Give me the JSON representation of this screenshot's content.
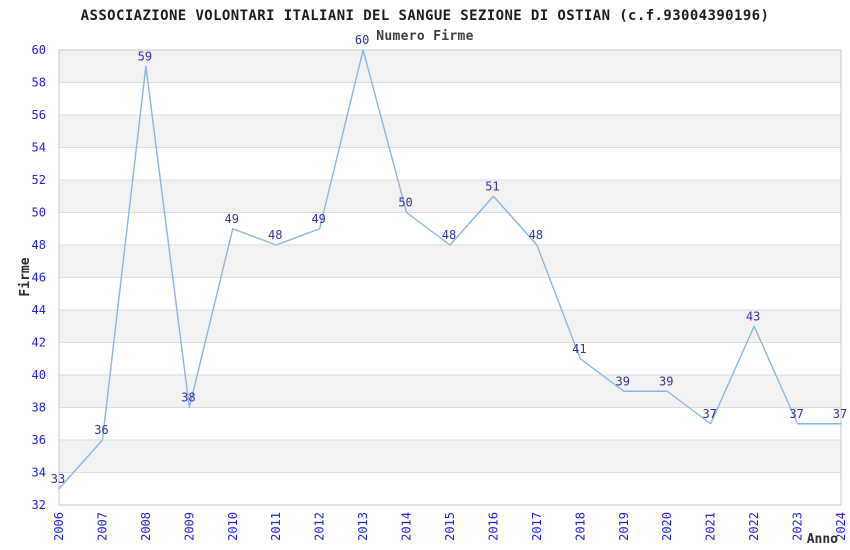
{
  "chart_data": {
    "type": "line",
    "title": "ASSOCIAZIONE VOLONTARI ITALIANI DEL SANGUE SEZIONE DI OSTIAN (c.f.93004390196)",
    "subtitle": "Numero Firme",
    "xlabel": "Anno",
    "ylabel": "Firme",
    "categories": [
      "2006",
      "2007",
      "2008",
      "2009",
      "2010",
      "2011",
      "2012",
      "2013",
      "2014",
      "2015",
      "2016",
      "2017",
      "2018",
      "2019",
      "2020",
      "2021",
      "2022",
      "2023",
      "2024"
    ],
    "series": [
      {
        "name": "Numero Firme",
        "values": [
          33,
          36,
          59,
          38,
          49,
          48,
          49,
          60,
          50,
          48,
          51,
          48,
          41,
          39,
          39,
          37,
          43,
          37,
          37
        ]
      }
    ],
    "ylim": [
      32,
      60
    ],
    "ytick_step": 2,
    "grid": "horizontal-banded",
    "legend_position": "none",
    "point_labels": true,
    "colors": {
      "line": "#85b7e8",
      "band_gray": "#f2f2f2",
      "band_white": "#ffffff",
      "gridline": "#dcdcdc",
      "plot_border": "#c8c8c8",
      "tick_label": "#2222dd",
      "data_label": "#333399",
      "title": "#1c1c1c",
      "subtitle": "#3f3f3f",
      "axis_label": "#2b2b2b",
      "background": "#ffffff"
    }
  }
}
